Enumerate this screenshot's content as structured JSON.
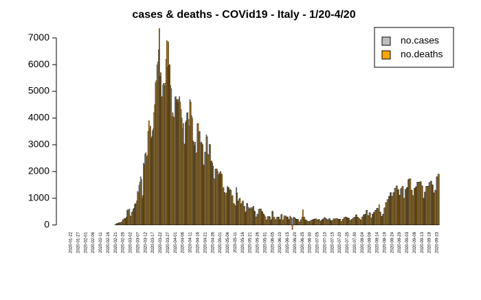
{
  "chart_data": {
    "type": "bar",
    "title": "cases & deaths - COVid19 - Italy - 1/20-4/20",
    "categories": [
      "2020-01-22",
      null,
      null,
      null,
      null,
      "2020-01-27",
      null,
      null,
      null,
      null,
      "2020-02-01",
      null,
      null,
      null,
      null,
      "2020-02-06",
      null,
      null,
      null,
      null,
      "2020-02-11",
      null,
      null,
      null,
      null,
      "2020-02-16",
      null,
      null,
      null,
      null,
      "2020-02-21",
      null,
      null,
      null,
      null,
      "2020-02-26",
      null,
      null,
      null,
      null,
      "2020-03-02",
      null,
      null,
      null,
      null,
      "2020-03-07",
      null,
      null,
      null,
      null,
      "2020-03-12",
      null,
      null,
      null,
      null,
      "2020-03-17",
      null,
      null,
      null,
      null,
      "2020-03-22",
      null,
      null,
      null,
      null,
      "2020-03-27",
      null,
      null,
      null,
      null,
      "2020-04-01",
      null,
      null,
      null,
      null,
      "2020-04-06",
      null,
      null,
      null,
      null,
      "2020-04-11",
      null,
      null,
      null,
      null,
      "2020-04-16",
      null,
      null,
      null,
      null,
      "2020-04-21",
      null,
      null,
      null,
      null,
      "2020-04-26",
      null,
      null,
      null,
      null,
      "2020-05-01",
      null,
      null,
      null,
      null,
      "2020-05-06",
      null,
      null,
      null,
      null,
      "2020-05-11",
      null,
      null,
      null,
      null,
      "2020-05-16",
      null,
      null,
      null,
      null,
      "2020-05-21",
      null,
      null,
      null,
      null,
      "2020-05-26",
      null,
      null,
      null,
      null,
      "2020-05-31",
      null,
      null,
      null,
      null,
      "2020-06-05",
      null,
      null,
      null,
      null,
      "2020-06-10",
      null,
      null,
      null,
      null,
      "2020-06-15",
      null,
      null,
      null,
      null,
      "2020-06-20",
      null,
      null,
      null,
      null,
      "2020-06-25",
      null,
      null,
      null,
      null,
      "2020-06-30",
      null,
      null,
      null,
      null,
      "2020-07-05",
      null,
      null,
      null,
      null,
      "2020-07-10",
      null,
      null,
      null,
      null,
      "2020-07-15",
      null,
      null,
      null,
      null,
      "2020-07-20",
      null,
      null,
      null,
      null,
      "2020-07-25",
      null,
      null,
      null,
      null,
      "2020-07-30",
      null,
      null,
      null,
      null,
      "2020-08-04",
      null,
      null,
      null,
      null,
      "2020-08-09",
      null,
      null,
      null,
      null,
      "2020-08-14",
      null,
      null,
      null,
      null,
      "2020-08-19",
      null,
      null,
      null,
      null,
      "2020-08-24",
      null,
      null,
      null,
      null,
      "2020-08-29",
      null,
      null,
      null,
      null,
      "2020-09-03",
      null,
      null,
      null,
      null,
      "2020-09-08",
      null,
      null,
      null,
      null,
      "2020-09-13",
      null,
      null,
      null,
      null,
      "2020-09-18",
      null,
      null,
      null,
      null,
      "2020-09-23",
      null
    ],
    "series": [
      {
        "name": "no.cases",
        "color": "#bebebe",
        "values": [
          0,
          0,
          0,
          0,
          0,
          0,
          0,
          0,
          0,
          0,
          0,
          0,
          0,
          0,
          0,
          0,
          0,
          0,
          0,
          0,
          0,
          0,
          0,
          0,
          0,
          0,
          0,
          0,
          0,
          0,
          20,
          60,
          70,
          90,
          100,
          200,
          250,
          240,
          560,
          570,
          340,
          470,
          590,
          770,
          780,
          1250,
          1490,
          1800,
          980,
          2310,
          2650,
          2550,
          3500,
          3590,
          3230,
          3520,
          4200,
          5320,
          5990,
          6560,
          5560,
          4790,
          5250,
          5210,
          6200,
          5900,
          5970,
          5220,
          4050,
          4050,
          4780,
          4670,
          4580,
          4800,
          4320,
          3600,
          3040,
          3830,
          4200,
          3950,
          4690,
          4090,
          3150,
          2970,
          2670,
          3790,
          3490,
          3050,
          3050,
          2260,
          2730,
          3370,
          2650,
          3020,
          2360,
          2320,
          1740,
          2090,
          2090,
          1870,
          1960,
          1900,
          1390,
          1220,
          1080,
          1440,
          1400,
          1330,
          1080,
          800,
          740,
          1400,
          890,
          990,
          790,
          870,
          680,
          450,
          810,
          660,
          640,
          650,
          670,
          530,
          300,
          400,
          580,
          590,
          510,
          420,
          350,
          180,
          320,
          320,
          180,
          520,
          270,
          200,
          280,
          280,
          200,
          380,
          160,
          350,
          340,
          300,
          210,
          330,
          250,
          260,
          260,
          220,
          220,
          110,
          190,
          300,
          260,
          180,
          170,
          130,
          140,
          180,
          200,
          220,
          230,
          190,
          210,
          140,
          190,
          230,
          280,
          230,
          190,
          240,
          170,
          160,
          230,
          230,
          240,
          210,
          220,
          130,
          210,
          280,
          300,
          270,
          250,
          170,
          210,
          260,
          290,
          380,
          290,
          240,
          190,
          300,
          380,
          400,
          550,
          350,
          460,
          260,
          410,
          480,
          550,
          630,
          580,
          480,
          320,
          400,
          640,
          840,
          950,
          1070,
          1210,
          1070,
          1210,
          1370,
          1460,
          1320,
          1110,
          1360,
          1440,
          1000,
          1330,
          1400,
          1700,
          1730,
          1300,
          1100,
          1370,
          1430,
          1600,
          1600,
          1620,
          1460,
          1000,
          1230,
          1450,
          1450,
          1590,
          1640,
          1500,
          1200,
          1300,
          1800,
          1900
        ]
      },
      {
        "name": "no.deaths",
        "color": "#ffa500",
        "values": [
          0,
          0,
          0,
          0,
          0,
          0,
          0,
          0,
          0,
          0,
          0,
          0,
          0,
          0,
          0,
          0,
          0,
          0,
          0,
          0,
          0,
          0,
          0,
          0,
          0,
          0,
          0,
          0,
          0,
          0,
          10,
          50,
          80,
          80,
          120,
          190,
          230,
          290,
          520,
          600,
          320,
          500,
          620,
          800,
          900,
          1200,
          1600,
          1700,
          1100,
          2250,
          2700,
          2600,
          3900,
          3700,
          3300,
          3600,
          4500,
          5400,
          6100,
          7350,
          5700,
          4800,
          5300,
          5300,
          6900,
          6850,
          6000,
          5100,
          4200,
          4000,
          4800,
          4700,
          4700,
          4600,
          4000,
          3800,
          3000,
          3900,
          4200,
          3700,
          4600,
          4000,
          3100,
          3100,
          2700,
          3800,
          3500,
          3100,
          3000,
          2200,
          2700,
          3300,
          2600,
          3000,
          2400,
          2200,
          1700,
          2100,
          2000,
          1900,
          2000,
          1900,
          1400,
          1200,
          1200,
          1400,
          1300,
          1300,
          1100,
          800,
          700,
          1200,
          900,
          1000,
          800,
          900,
          700,
          500,
          800,
          600,
          600,
          600,
          700,
          500,
          300,
          400,
          600,
          600,
          500,
          400,
          300,
          200,
          300,
          300,
          200,
          500,
          300,
          200,
          300,
          300,
          200,
          400,
          200,
          300,
          300,
          300,
          200,
          300,
          -170,
          300,
          250,
          200,
          200,
          100,
          200,
          570,
          300,
          200,
          150,
          130,
          150,
          180,
          200,
          220,
          230,
          190,
          210,
          140,
          190,
          230,
          270,
          230,
          190,
          240,
          170,
          160,
          230,
          230,
          240,
          210,
          220,
          130,
          210,
          280,
          300,
          270,
          250,
          170,
          210,
          260,
          290,
          380,
          290,
          240,
          190,
          300,
          380,
          400,
          550,
          350,
          460,
          260,
          410,
          480,
          550,
          630,
          760,
          480,
          320,
          400,
          640,
          840,
          950,
          1070,
          1210,
          1070,
          1210,
          1370,
          1460,
          1320,
          1110,
          1360,
          1440,
          1000,
          1330,
          1400,
          1700,
          1730,
          1300,
          1100,
          1370,
          1430,
          1600,
          1600,
          1620,
          1460,
          1000,
          1230,
          1450,
          1450,
          1590,
          1640,
          1500,
          1200,
          1300,
          1800,
          1900
        ]
      }
    ],
    "ylim": [
      -300,
      7400
    ],
    "yticks": [
      0,
      1000,
      2000,
      3000,
      4000,
      5000,
      6000,
      7000
    ],
    "legend": "top-right"
  }
}
